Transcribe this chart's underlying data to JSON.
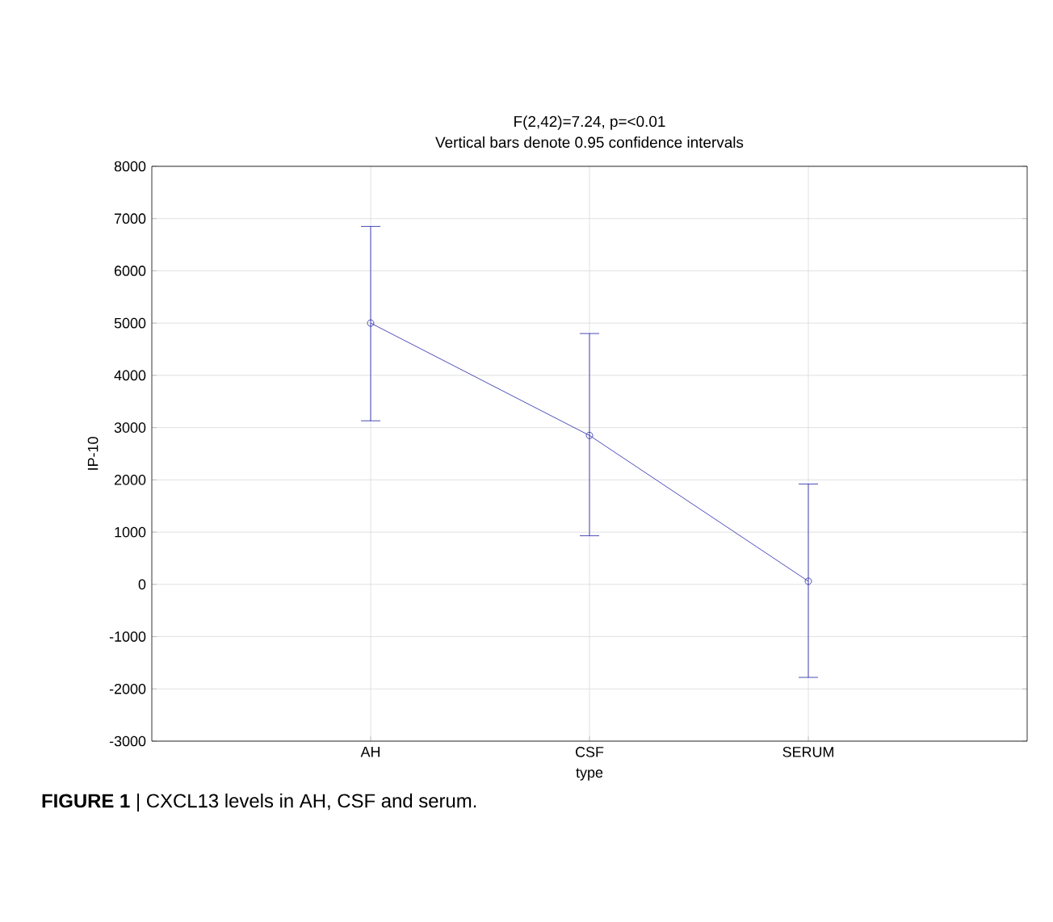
{
  "chart_data": {
    "type": "line",
    "title": "F(2,42)=7.24, p=<0.01",
    "subtitle": "Vertical bars denote 0.95 confidence intervals",
    "xlabel": "type",
    "ylabel": "IP-10",
    "categories": [
      "AH",
      "CSF",
      "SERUM"
    ],
    "series": [
      {
        "color": "#2020a8",
        "values": [
          5000,
          2850,
          60
        ],
        "errors": [
          [
            3130,
            6850
          ],
          [
            930,
            4800
          ],
          [
            -1780,
            1920
          ]
        ]
      }
    ],
    "ylim": [
      -3000,
      8000
    ],
    "yticks": [
      -3000,
      -2000,
      -1000,
      0,
      1000,
      2000,
      3000,
      4000,
      5000,
      6000,
      7000,
      8000
    ],
    "grid": true,
    "marker": "circle",
    "line_style": "solid",
    "annotations": [
      "**FIGURE 1** | CXCL13 levels in AH, CSF and serum."
    ]
  }
}
